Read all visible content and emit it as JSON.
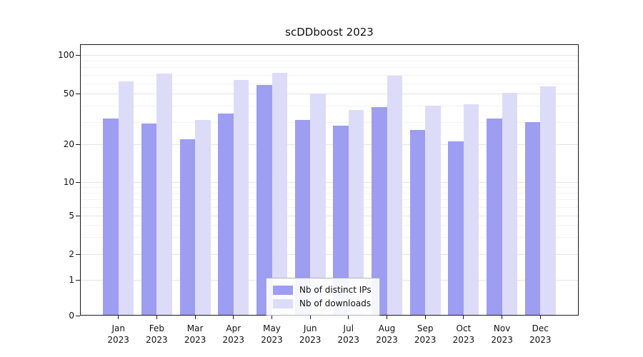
{
  "chart": {
    "title": "scDDboost 2023"
  },
  "chart_data": {
    "type": "bar",
    "title": "scDDboost 2023",
    "categories": [
      "Jan",
      "Feb",
      "Mar",
      "Apr",
      "May",
      "Jun",
      "Jul",
      "Aug",
      "Sep",
      "Oct",
      "Nov",
      "Dec"
    ],
    "year_label": "2023",
    "series": [
      {
        "name": "Nb of distinct IPs",
        "color": "#9d9df1",
        "values": [
          32,
          29,
          22,
          35,
          58,
          31,
          28,
          39,
          26,
          21,
          32,
          30
        ]
      },
      {
        "name": "Nb of downloads",
        "color": "#dcdcf9",
        "values": [
          62,
          72,
          31,
          64,
          73,
          50,
          37,
          69,
          40,
          41,
          51,
          57
        ]
      }
    ],
    "yticks": [
      0,
      1,
      2,
      5,
      10,
      20,
      50,
      100
    ],
    "yscale": "symlog",
    "ylim": [
      0,
      120
    ],
    "xlabel": "",
    "ylabel": "",
    "grid": true,
    "legend_position": "lower center"
  }
}
